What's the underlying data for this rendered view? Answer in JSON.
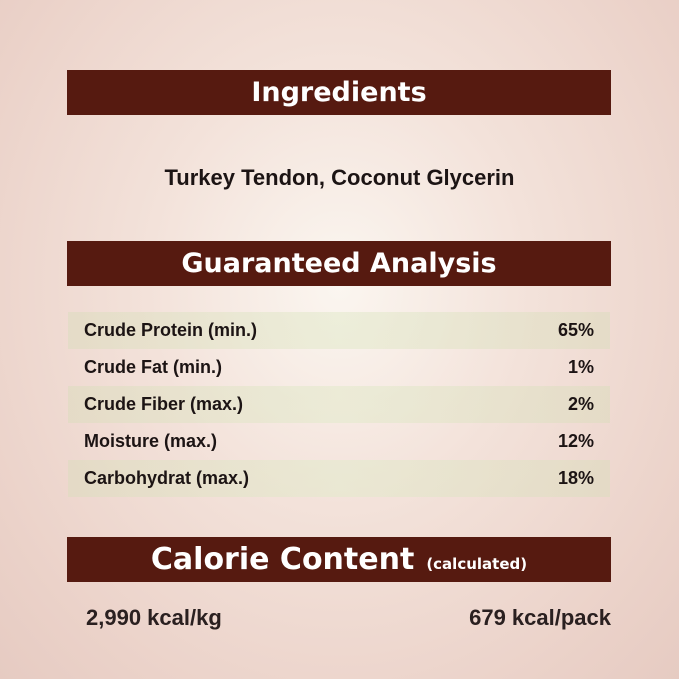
{
  "ingredients": {
    "title": "Ingredients",
    "text": "Turkey Tendon, Coconut Glycerin"
  },
  "analysis": {
    "title": "Guaranteed Analysis",
    "rows": [
      {
        "label": "Crude Protein (min.)",
        "value": "65%"
      },
      {
        "label": "Crude Fat (min.)",
        "value": "1%"
      },
      {
        "label": "Crude Fiber (max.)",
        "value": "2%"
      },
      {
        "label": "Moisture (max.)",
        "value": "12%"
      },
      {
        "label": "Carbohydrat (max.)",
        "value": "18%"
      }
    ]
  },
  "calorie": {
    "title": "Calorie Content",
    "subtitle": "(calculated)",
    "per_kg": "2,990 kcal/kg",
    "per_pack": "679 kcal/pack"
  },
  "colors": {
    "banner": "#561a10",
    "background": "#efd9d2"
  }
}
